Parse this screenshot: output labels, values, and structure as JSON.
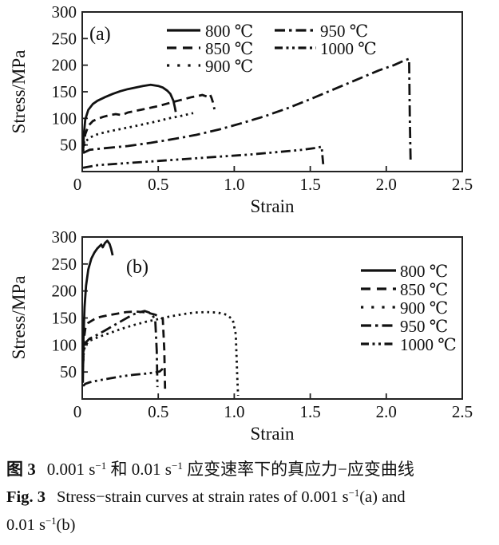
{
  "colors": {
    "ink": "#111111",
    "axis": "#222222",
    "background": "#ffffff"
  },
  "chart_data": [
    {
      "id": "a",
      "type": "line",
      "panel_label": "(a)",
      "xlabel": "Strain",
      "ylabel": "Stress/MPa",
      "xlim": [
        0,
        2.5
      ],
      "ylim": [
        0,
        300
      ],
      "xticks": [
        0,
        0.5,
        1.0,
        1.5,
        2.0,
        2.5
      ],
      "xtick_labels": [
        "0",
        "0.5",
        "1.0",
        "1.5",
        "2.0",
        "2.5"
      ],
      "yticks": [
        0,
        50,
        100,
        150,
        200,
        250,
        300
      ],
      "grid": false,
      "legend_position": "top-inside, two columns",
      "series": [
        {
          "name": "800 ℃",
          "style": "solid",
          "points": [
            [
              0.005,
              38
            ],
            [
              0.01,
              68
            ],
            [
              0.02,
              98
            ],
            [
              0.04,
              116
            ],
            [
              0.07,
              127
            ],
            [
              0.1,
              133
            ],
            [
              0.15,
              140
            ],
            [
              0.2,
              146
            ],
            [
              0.25,
              151
            ],
            [
              0.3,
              155
            ],
            [
              0.35,
              158
            ],
            [
              0.4,
              161
            ],
            [
              0.45,
              163
            ],
            [
              0.5,
              161
            ],
            [
              0.53,
              158
            ],
            [
              0.56,
              152
            ],
            [
              0.58,
              146
            ],
            [
              0.6,
              133
            ],
            [
              0.61,
              120
            ],
            [
              0.615,
              112
            ]
          ]
        },
        {
          "name": "850 ℃",
          "style": "dashed",
          "points": [
            [
              0.005,
              42
            ],
            [
              0.02,
              70
            ],
            [
              0.04,
              86
            ],
            [
              0.07,
              95
            ],
            [
              0.1,
              99
            ],
            [
              0.14,
              103
            ],
            [
              0.18,
              106
            ],
            [
              0.22,
              108
            ],
            [
              0.26,
              106
            ],
            [
              0.3,
              111
            ],
            [
              0.35,
              114
            ],
            [
              0.4,
              117
            ],
            [
              0.45,
              120
            ],
            [
              0.5,
              123
            ],
            [
              0.55,
              127
            ],
            [
              0.6,
              131
            ],
            [
              0.64,
              134
            ],
            [
              0.68,
              137
            ],
            [
              0.72,
              140
            ],
            [
              0.76,
              142
            ],
            [
              0.79,
              144
            ],
            [
              0.82,
              141
            ],
            [
              0.84,
              145
            ],
            [
              0.85,
              139
            ],
            [
              0.86,
              130
            ],
            [
              0.87,
              117
            ]
          ]
        },
        {
          "name": "900 ℃",
          "style": "dotted",
          "points": [
            [
              0.005,
              38
            ],
            [
              0.02,
              56
            ],
            [
              0.05,
              64
            ],
            [
              0.1,
              70
            ],
            [
              0.15,
              74
            ],
            [
              0.2,
              77
            ],
            [
              0.27,
              81
            ],
            [
              0.34,
              85
            ],
            [
              0.42,
              90
            ],
            [
              0.5,
              95
            ],
            [
              0.57,
              100
            ],
            [
              0.64,
              104
            ],
            [
              0.7,
              108
            ],
            [
              0.73,
              110
            ]
          ]
        },
        {
          "name": "950 ℃",
          "style": "dashdot",
          "points": [
            [
              0.005,
              35
            ],
            [
              0.05,
              41
            ],
            [
              0.15,
              44
            ],
            [
              0.3,
              48
            ],
            [
              0.45,
              54
            ],
            [
              0.6,
              61
            ],
            [
              0.75,
              69
            ],
            [
              0.9,
              79
            ],
            [
              1.05,
              91
            ],
            [
              1.2,
              104
            ],
            [
              1.35,
              119
            ],
            [
              1.5,
              136
            ],
            [
              1.65,
              154
            ],
            [
              1.8,
              172
            ],
            [
              1.95,
              190
            ],
            [
              2.05,
              200
            ],
            [
              2.12,
              209
            ],
            [
              2.15,
              212
            ],
            [
              2.155,
              100
            ],
            [
              2.16,
              18
            ]
          ]
        },
        {
          "name": "1000 ℃",
          "style": "dashdotdot",
          "points": [
            [
              0.005,
              7
            ],
            [
              0.1,
              12
            ],
            [
              0.3,
              16
            ],
            [
              0.5,
              20
            ],
            [
              0.7,
              24
            ],
            [
              0.9,
              28
            ],
            [
              1.1,
              32
            ],
            [
              1.3,
              37
            ],
            [
              1.45,
              41
            ],
            [
              1.55,
              45
            ],
            [
              1.575,
              47
            ],
            [
              1.58,
              30
            ],
            [
              1.585,
              14
            ]
          ]
        }
      ]
    },
    {
      "id": "b",
      "type": "line",
      "panel_label": "(b)",
      "xlabel": "Strain",
      "ylabel": "Stress/MPa",
      "xlim": [
        0,
        2.5
      ],
      "ylim": [
        0,
        300
      ],
      "xticks": [
        0,
        0.5,
        1.0,
        1.5,
        2.0,
        2.5
      ],
      "xtick_labels": [
        "0",
        "0.5",
        "1.0",
        "1.5",
        "2.0",
        "2.5"
      ],
      "yticks": [
        0,
        50,
        100,
        150,
        200,
        250,
        300
      ],
      "grid": false,
      "legend_position": "right-inside, one column",
      "series": [
        {
          "name": "800 ℃",
          "style": "solid",
          "points": [
            [
              0.004,
              30
            ],
            [
              0.008,
              110
            ],
            [
              0.015,
              170
            ],
            [
              0.025,
              210
            ],
            [
              0.04,
              240
            ],
            [
              0.06,
              260
            ],
            [
              0.08,
              271
            ],
            [
              0.1,
              279
            ],
            [
              0.125,
              286
            ],
            [
              0.135,
              281
            ],
            [
              0.15,
              289
            ],
            [
              0.165,
              293
            ],
            [
              0.18,
              287
            ],
            [
              0.19,
              278
            ],
            [
              0.2,
              266
            ]
          ]
        },
        {
          "name": "850 ℃",
          "style": "dashed",
          "points": [
            [
              0.005,
              70
            ],
            [
              0.01,
              108
            ],
            [
              0.02,
              130
            ],
            [
              0.04,
              141
            ],
            [
              0.08,
              148
            ],
            [
              0.12,
              152
            ],
            [
              0.17,
              155
            ],
            [
              0.23,
              158
            ],
            [
              0.29,
              161
            ],
            [
              0.35,
              162
            ],
            [
              0.4,
              161
            ],
            [
              0.44,
              159
            ],
            [
              0.48,
              156
            ],
            [
              0.51,
              152
            ],
            [
              0.53,
              148
            ],
            [
              0.54,
              90
            ],
            [
              0.545,
              14
            ]
          ]
        },
        {
          "name": "900 ℃",
          "style": "dotted",
          "points": [
            [
              0.005,
              60
            ],
            [
              0.01,
              88
            ],
            [
              0.02,
              100
            ],
            [
              0.05,
              108
            ],
            [
              0.1,
              114
            ],
            [
              0.18,
              122
            ],
            [
              0.26,
              130
            ],
            [
              0.34,
              137
            ],
            [
              0.42,
              143
            ],
            [
              0.5,
              148
            ],
            [
              0.58,
              153
            ],
            [
              0.66,
              157
            ],
            [
              0.74,
              160
            ],
            [
              0.82,
              161
            ],
            [
              0.89,
              160
            ],
            [
              0.95,
              156
            ],
            [
              0.99,
              147
            ],
            [
              1.01,
              120
            ],
            [
              1.02,
              40
            ],
            [
              1.025,
              6
            ]
          ]
        },
        {
          "name": "950 ℃",
          "style": "dashdot",
          "points": [
            [
              0.005,
              60
            ],
            [
              0.01,
              92
            ],
            [
              0.02,
              104
            ],
            [
              0.05,
              112
            ],
            [
              0.1,
              119
            ],
            [
              0.15,
              127
            ],
            [
              0.2,
              135
            ],
            [
              0.25,
              143
            ],
            [
              0.3,
              151
            ],
            [
              0.34,
              157
            ],
            [
              0.38,
              161
            ],
            [
              0.41,
              163
            ],
            [
              0.44,
              160
            ],
            [
              0.46,
              155
            ],
            [
              0.48,
              148
            ],
            [
              0.49,
              90
            ],
            [
              0.495,
              22
            ]
          ]
        },
        {
          "name": "1000 ℃",
          "style": "dashdotdot",
          "points": [
            [
              0.005,
              24
            ],
            [
              0.02,
              28
            ],
            [
              0.05,
              31
            ],
            [
              0.1,
              34
            ],
            [
              0.18,
              38
            ],
            [
              0.26,
              42
            ],
            [
              0.34,
              45
            ],
            [
              0.42,
              47
            ],
            [
              0.48,
              49
            ],
            [
              0.51,
              51
            ],
            [
              0.53,
              56
            ]
          ]
        }
      ]
    }
  ],
  "caption": {
    "line1": {
      "prefix_bold": "图 3",
      "parts": [
        {
          "t": "0.001 s"
        },
        {
          "t": "−1",
          "sup": true
        },
        {
          "t": " 和 0.01 s"
        },
        {
          "t": "−1",
          "sup": true
        },
        {
          "t": " 应变速率下的真应力−应变曲线"
        }
      ]
    },
    "line2": {
      "prefix_bold": "Fig. 3",
      "parts": [
        {
          "t": "Stress−strain curves at strain rates of 0.001 s"
        },
        {
          "t": "−1",
          "sup": true
        },
        {
          "t": "(a) and"
        }
      ]
    },
    "line3": {
      "parts": [
        {
          "t": "0.01 s"
        },
        {
          "t": "−1",
          "sup": true
        },
        {
          "t": "(b)"
        }
      ]
    }
  }
}
